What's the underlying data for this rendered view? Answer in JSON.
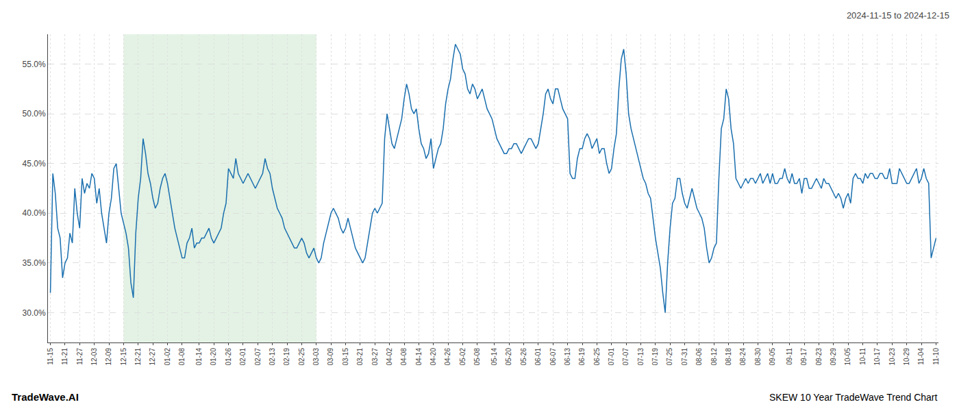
{
  "chart_data": {
    "type": "line",
    "title": "2024-11-15 to 2024-12-15",
    "annotations": [
      "TradeWave.AI",
      "SKEW 10 Year TradeWave Trend Chart"
    ],
    "color": "#1a6faf",
    "grid": true,
    "ylim": [
      27,
      58
    ],
    "yticks": [
      {
        "value": 30.0,
        "label": "30.0%"
      },
      {
        "value": 35.0,
        "label": "35.0%"
      },
      {
        "value": 40.0,
        "label": "40.0%"
      },
      {
        "value": 45.0,
        "label": "45.0%"
      },
      {
        "value": 50.0,
        "label": "50.0%"
      },
      {
        "value": 55.0,
        "label": "55.0%"
      }
    ],
    "highlight": {
      "start": "12-15",
      "end": "03-03",
      "color": "#c8e6c9"
    },
    "categories": [
      "11-15",
      null,
      null,
      null,
      null,
      null,
      "11-21",
      null,
      null,
      null,
      null,
      null,
      "11-27",
      null,
      null,
      null,
      null,
      null,
      "12-03",
      null,
      null,
      null,
      null,
      null,
      "12-09",
      null,
      null,
      null,
      null,
      null,
      "12-15",
      null,
      null,
      null,
      null,
      null,
      "12-21",
      null,
      null,
      null,
      null,
      null,
      "12-27",
      null,
      null,
      null,
      null,
      null,
      "01-02",
      null,
      null,
      null,
      null,
      null,
      "01-08",
      null,
      null,
      null,
      null,
      null,
      null,
      "01-14",
      null,
      null,
      null,
      null,
      null,
      "01-20",
      null,
      null,
      null,
      null,
      null,
      "01-26",
      null,
      null,
      null,
      null,
      null,
      "02-01",
      null,
      null,
      null,
      null,
      null,
      "02-07",
      null,
      null,
      null,
      null,
      null,
      "02-13",
      null,
      null,
      null,
      null,
      null,
      "02-19",
      null,
      null,
      null,
      null,
      null,
      "02-25",
      null,
      null,
      null,
      null,
      null,
      "03-03",
      null,
      null,
      null,
      null,
      null,
      "03-09",
      null,
      null,
      null,
      null,
      null,
      "03-15",
      null,
      null,
      null,
      null,
      null,
      "03-21",
      null,
      null,
      null,
      null,
      null,
      "03-27",
      null,
      null,
      null,
      null,
      null,
      "04-02",
      null,
      null,
      null,
      null,
      null,
      "04-08",
      null,
      null,
      null,
      null,
      null,
      "04-14",
      null,
      null,
      null,
      null,
      null,
      "04-20",
      null,
      null,
      null,
      null,
      null,
      "04-26",
      null,
      null,
      null,
      null,
      null,
      "05-02",
      null,
      null,
      null,
      null,
      null,
      "05-08",
      null,
      null,
      null,
      null,
      null,
      null,
      "05-14",
      null,
      null,
      null,
      null,
      null,
      "05-20",
      null,
      null,
      null,
      null,
      null,
      "05-26",
      null,
      null,
      null,
      null,
      null,
      "06-01",
      null,
      null,
      null,
      null,
      null,
      "06-07",
      null,
      null,
      null,
      null,
      null,
      "06-13",
      null,
      null,
      null,
      null,
      null,
      "06-19",
      null,
      null,
      null,
      null,
      null,
      "06-25",
      null,
      null,
      null,
      null,
      null,
      "07-01",
      null,
      null,
      null,
      null,
      null,
      "07-07",
      null,
      null,
      null,
      null,
      null,
      "07-13",
      null,
      null,
      null,
      null,
      null,
      "07-19",
      null,
      null,
      null,
      null,
      null,
      "07-25",
      null,
      null,
      null,
      null,
      null,
      "07-31",
      null,
      null,
      null,
      null,
      null,
      "08-06",
      null,
      null,
      null,
      null,
      null,
      "08-12",
      null,
      null,
      null,
      null,
      null,
      "08-18",
      null,
      null,
      null,
      null,
      null,
      "08-24",
      null,
      null,
      null,
      null,
      null,
      "08-30",
      null,
      null,
      null,
      null,
      null,
      "09-05",
      null,
      null,
      null,
      null,
      null,
      null,
      "09-11",
      null,
      null,
      null,
      null,
      null,
      "09-17",
      null,
      null,
      null,
      null,
      null,
      "09-23",
      null,
      null,
      null,
      null,
      null,
      "09-29",
      null,
      null,
      null,
      null,
      null,
      "10-05",
      null,
      null,
      null,
      null,
      null,
      "10-11",
      null,
      null,
      null,
      null,
      null,
      "10-17",
      null,
      null,
      null,
      null,
      null,
      "10-23",
      null,
      null,
      null,
      null,
      null,
      "10-29",
      null,
      null,
      null,
      null,
      null,
      "11-04",
      null,
      null,
      null,
      null,
      null,
      "11-10"
    ],
    "values": [
      32.0,
      44.0,
      42.0,
      38.5,
      37.5,
      33.5,
      35.0,
      35.5,
      38.0,
      37.0,
      42.5,
      40.0,
      38.5,
      43.5,
      42.0,
      43.0,
      42.5,
      44.0,
      43.5,
      41.0,
      42.5,
      40.0,
      38.5,
      37.0,
      40.0,
      41.5,
      44.5,
      45.0,
      42.5,
      40.0,
      39.0,
      38.0,
      36.5,
      33.0,
      31.5,
      38.0,
      41.5,
      43.5,
      47.5,
      46.0,
      44.0,
      43.0,
      41.5,
      40.5,
      41.0,
      42.5,
      43.5,
      44.0,
      43.0,
      41.5,
      40.0,
      38.5,
      37.5,
      36.5,
      35.5,
      35.5,
      37.0,
      37.5,
      38.5,
      36.5,
      37.0,
      37.0,
      37.5,
      37.5,
      38.0,
      38.5,
      37.5,
      37.0,
      37.5,
      38.0,
      38.5,
      40.0,
      41.0,
      44.5,
      44.0,
      43.5,
      45.5,
      44.0,
      43.5,
      43.0,
      43.5,
      44.0,
      43.5,
      43.0,
      42.5,
      43.0,
      43.5,
      44.0,
      45.5,
      44.5,
      44.0,
      42.5,
      41.5,
      40.5,
      40.0,
      39.5,
      38.5,
      38.0,
      37.5,
      37.0,
      36.5,
      36.5,
      37.0,
      37.5,
      37.0,
      36.0,
      35.5,
      36.0,
      36.5,
      35.5,
      35.0,
      35.5,
      37.0,
      38.0,
      39.0,
      40.0,
      40.5,
      40.0,
      39.5,
      38.5,
      38.0,
      38.5,
      39.5,
      38.5,
      37.5,
      36.5,
      36.0,
      35.5,
      35.0,
      35.5,
      37.0,
      38.5,
      40.0,
      40.5,
      40.0,
      40.5,
      41.0,
      47.5,
      50.0,
      48.5,
      47.0,
      46.5,
      47.5,
      48.5,
      49.5,
      51.5,
      53.0,
      52.0,
      50.5,
      50.0,
      50.5,
      48.5,
      47.0,
      46.5,
      45.5,
      46.0,
      47.5,
      44.5,
      45.5,
      46.5,
      47.0,
      48.5,
      51.0,
      52.5,
      53.5,
      55.5,
      57.0,
      56.5,
      56.0,
      54.5,
      54.0,
      52.5,
      52.0,
      53.0,
      52.5,
      51.5,
      52.0,
      52.5,
      51.5,
      50.5,
      50.0,
      49.5,
      48.5,
      47.5,
      47.0,
      46.5,
      46.0,
      46.0,
      46.5,
      46.5,
      47.0,
      47.0,
      46.5,
      46.0,
      46.5,
      47.0,
      47.5,
      47.5,
      47.0,
      46.5,
      47.0,
      48.5,
      50.0,
      52.0,
      52.5,
      51.5,
      51.0,
      52.5,
      52.5,
      51.5,
      50.5,
      50.0,
      49.5,
      44.0,
      43.5,
      43.5,
      45.5,
      46.5,
      46.5,
      47.5,
      48.0,
      47.5,
      46.5,
      47.0,
      47.5,
      46.0,
      46.5,
      46.5,
      45.0,
      44.0,
      44.5,
      46.5,
      48.0,
      52.5,
      55.5,
      56.5,
      54.0,
      50.0,
      48.5,
      47.5,
      46.5,
      45.5,
      44.5,
      43.5,
      43.0,
      42.0,
      41.5,
      39.5,
      37.5,
      36.0,
      34.5,
      32.0,
      30.0,
      35.0,
      38.5,
      41.0,
      41.5,
      43.5,
      43.5,
      42.0,
      41.0,
      40.5,
      41.5,
      42.5,
      41.5,
      40.5,
      40.0,
      39.5,
      38.5,
      36.5,
      35.0,
      35.5,
      36.5,
      37.0,
      43.5,
      48.5,
      49.5,
      52.5,
      51.5,
      48.5,
      47.0,
      43.5,
      43.0,
      42.5,
      43.0,
      43.5,
      43.0,
      43.5,
      43.5,
      43.0,
      43.5,
      44.0,
      43.0,
      43.5,
      44.0,
      43.0,
      44.0,
      43.0,
      43.0,
      43.5,
      43.5,
      44.5,
      43.5,
      43.0,
      44.0,
      43.0,
      43.0,
      43.5,
      42.0,
      43.5,
      43.5,
      42.5,
      42.5,
      43.0,
      43.5,
      43.0,
      42.5,
      43.5,
      43.0,
      43.0,
      42.5,
      42.0,
      41.5,
      42.0,
      41.5,
      40.5,
      41.5,
      42.0,
      41.0,
      43.5,
      44.0,
      43.5,
      43.5,
      43.0,
      44.0,
      43.5,
      44.0,
      44.0,
      43.5,
      43.5,
      44.0,
      44.0,
      43.5,
      43.5,
      44.5,
      43.0,
      43.0,
      43.0,
      44.5,
      44.0,
      43.5,
      43.0,
      43.0,
      43.5,
      44.0,
      44.5,
      43.0,
      43.5,
      44.5,
      43.5,
      43.0,
      35.5,
      36.5,
      37.5
    ]
  }
}
